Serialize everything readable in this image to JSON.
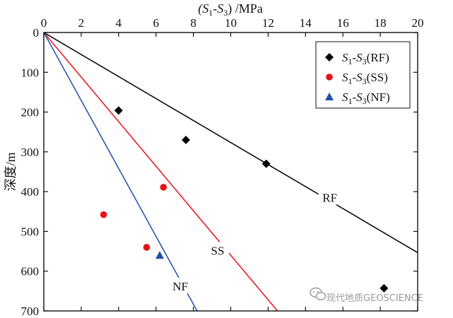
{
  "chart_data": {
    "type": "scatter",
    "xlabel_parts": [
      "(S",
      "1",
      "-S",
      "3",
      ") /MPa"
    ],
    "ylabel": "深度/m",
    "xlim": [
      0,
      20
    ],
    "ylim": [
      0,
      700
    ],
    "y_inverted": true,
    "x_axis_position": "top",
    "xticks": [
      0,
      2,
      4,
      6,
      8,
      10,
      12,
      14,
      16,
      18,
      20
    ],
    "yticks": [
      0,
      100,
      200,
      300,
      400,
      500,
      600,
      700
    ],
    "grid": false,
    "legend_placement": "top-right",
    "series": [
      {
        "name_parts": [
          "S",
          "1",
          "-S",
          "3",
          "(RF)"
        ],
        "marker": "diamond",
        "color": "#000000",
        "points": [
          {
            "x": 4.0,
            "y": 196
          },
          {
            "x": 7.6,
            "y": 270
          },
          {
            "x": 11.9,
            "y": 330
          },
          {
            "x": 18.2,
            "y": 643
          }
        ]
      },
      {
        "name_parts": [
          "S",
          "1",
          "-S",
          "3",
          "(SS)"
        ],
        "marker": "circle",
        "color": "#e8111a",
        "points": [
          {
            "x": 3.2,
            "y": 458
          },
          {
            "x": 5.5,
            "y": 540
          },
          {
            "x": 6.4,
            "y": 389
          }
        ]
      },
      {
        "name_parts": [
          "S",
          "1",
          "-S",
          "3",
          "(NF)"
        ],
        "marker": "triangle",
        "color": "#1f4fa8",
        "points": [
          {
            "x": 6.2,
            "y": 560
          }
        ]
      }
    ],
    "reference_lines": [
      {
        "label": "RF",
        "color": "#000000",
        "x_at_700": 25.3,
        "label_at": {
          "x": 15.3,
          "y": 415
        }
      },
      {
        "label": "SS",
        "color": "#e8111a",
        "x_at_700": 12.5,
        "label_at": {
          "x": 9.3,
          "y": 548
        }
      },
      {
        "label": "NF",
        "color": "#1f4fa8",
        "x_at_700": 8.2,
        "label_at": {
          "x": 7.3,
          "y": 638
        }
      }
    ]
  },
  "watermark": {
    "text": "现代地质GEOSCIENCE",
    "icon": "wechat-icon"
  }
}
